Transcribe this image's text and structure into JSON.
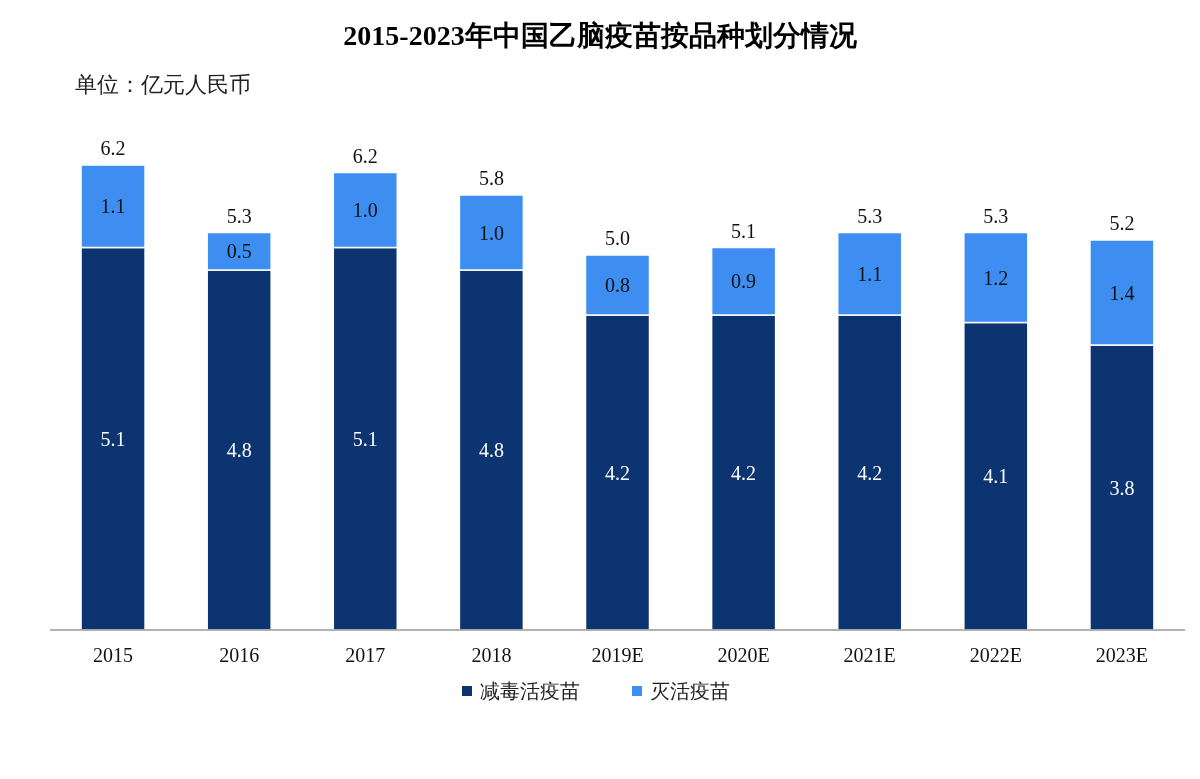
{
  "chart_data": {
    "type": "bar",
    "title": "2015-2023年中国乙脑疫苗按品种划分情况",
    "subtitle": "单位：亿元人民币",
    "categories": [
      "2015",
      "2016",
      "2017",
      "2018",
      "2019E",
      "2020E",
      "2021E",
      "2022E",
      "2023E"
    ],
    "stacked": true,
    "legend": "bottom",
    "series": [
      {
        "name": "减毒活疫苗",
        "color": "#0b3470",
        "values": [
          5.1,
          4.8,
          5.1,
          4.8,
          4.2,
          4.2,
          4.2,
          4.1,
          3.8
        ],
        "value_labels": [
          "5.1",
          "4.8",
          "5.1",
          "4.8",
          "4.2",
          "4.2",
          "4.2",
          "4.1",
          "3.8"
        ]
      },
      {
        "name": "灭活疫苗",
        "color": "#3d8ef0",
        "values": [
          1.1,
          0.5,
          1.0,
          1.0,
          0.8,
          0.9,
          1.1,
          1.2,
          1.4
        ],
        "value_labels": [
          "1.1",
          "0.5",
          "1.0",
          "1.0",
          "0.8",
          "0.9",
          "1.1",
          "1.2",
          "1.4"
        ]
      }
    ],
    "totals": [
      "6.2",
      "5.3",
      "6.2",
      "5.8",
      "5.0",
      "5.1",
      "5.3",
      "5.3",
      "5.2"
    ]
  }
}
